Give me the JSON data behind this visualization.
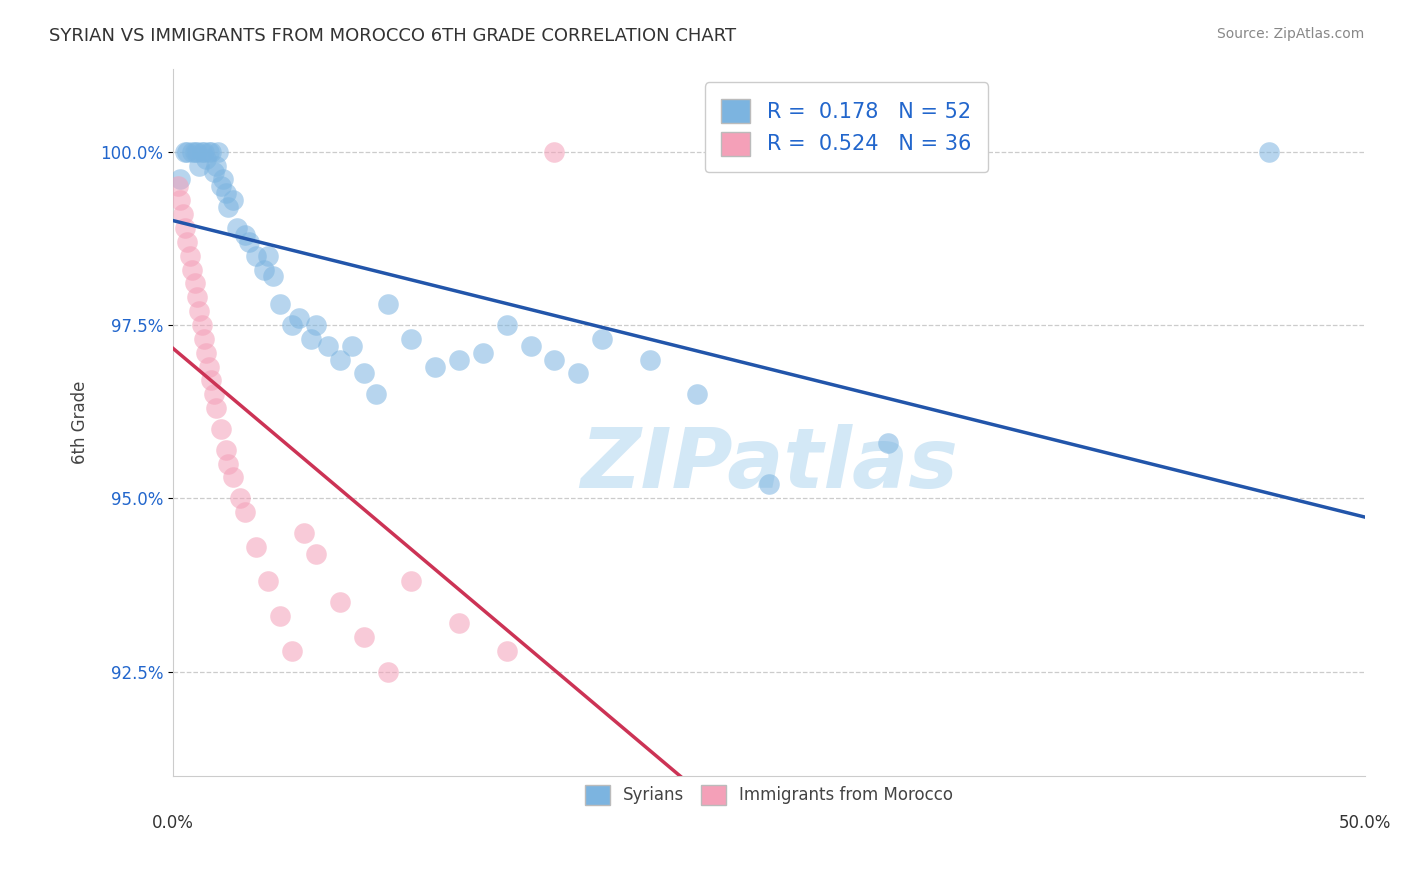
{
  "title": "SYRIAN VS IMMIGRANTS FROM MOROCCO 6TH GRADE CORRELATION CHART",
  "source": "Source: ZipAtlas.com",
  "ylabel": "6th Grade",
  "yticks": [
    92.5,
    95.0,
    97.5,
    100.0
  ],
  "ytick_labels": [
    "92.5%",
    "95.0%",
    "97.5%",
    "100.0%"
  ],
  "xlim": [
    0.0,
    50.0
  ],
  "ylim": [
    91.0,
    101.2
  ],
  "blue_color": "#7cb4e0",
  "pink_color": "#f4a0b8",
  "blue_line_color": "#2255aa",
  "pink_line_color": "#cc3355",
  "background_color": "#ffffff",
  "R_blue": 0.178,
  "N_blue": 52,
  "R_pink": 0.524,
  "N_pink": 36,
  "legend_R_N_color": "#2266cc",
  "watermark_color": "#cce4f5",
  "syrians_x": [
    0.3,
    0.5,
    0.6,
    0.8,
    0.9,
    1.0,
    1.1,
    1.2,
    1.3,
    1.4,
    1.5,
    1.6,
    1.7,
    1.8,
    1.9,
    2.0,
    2.1,
    2.2,
    2.3,
    2.5,
    2.7,
    3.0,
    3.2,
    3.5,
    3.8,
    4.0,
    4.2,
    4.5,
    5.0,
    5.3,
    5.8,
    6.0,
    6.5,
    7.0,
    7.5,
    8.0,
    8.5,
    9.0,
    10.0,
    11.0,
    12.0,
    13.0,
    14.0,
    15.0,
    16.0,
    17.0,
    18.0,
    20.0,
    22.0,
    25.0,
    30.0,
    46.0
  ],
  "syrians_y": [
    99.6,
    100.0,
    100.0,
    100.0,
    100.0,
    100.0,
    99.8,
    100.0,
    100.0,
    99.9,
    100.0,
    100.0,
    99.7,
    99.8,
    100.0,
    99.5,
    99.6,
    99.4,
    99.2,
    99.3,
    98.9,
    98.8,
    98.7,
    98.5,
    98.3,
    98.5,
    98.2,
    97.8,
    97.5,
    97.6,
    97.3,
    97.5,
    97.2,
    97.0,
    97.2,
    96.8,
    96.5,
    97.8,
    97.3,
    96.9,
    97.0,
    97.1,
    97.5,
    97.2,
    97.0,
    96.8,
    97.3,
    97.0,
    96.5,
    95.2,
    95.8,
    100.0
  ],
  "morocco_x": [
    0.2,
    0.3,
    0.4,
    0.5,
    0.6,
    0.7,
    0.8,
    0.9,
    1.0,
    1.1,
    1.2,
    1.3,
    1.4,
    1.5,
    1.6,
    1.7,
    1.8,
    2.0,
    2.2,
    2.5,
    2.8,
    3.0,
    3.5,
    4.0,
    4.5,
    5.0,
    5.5,
    6.0,
    7.0,
    8.0,
    9.0,
    10.0,
    12.0,
    14.0,
    16.0,
    2.3
  ],
  "morocco_y": [
    99.5,
    99.3,
    99.1,
    98.9,
    98.7,
    98.5,
    98.3,
    98.1,
    97.9,
    97.7,
    97.5,
    97.3,
    97.1,
    96.9,
    96.7,
    96.5,
    96.3,
    96.0,
    95.7,
    95.3,
    95.0,
    94.8,
    94.3,
    93.8,
    93.3,
    92.8,
    94.5,
    94.2,
    93.5,
    93.0,
    92.5,
    93.8,
    93.2,
    92.8,
    100.0,
    95.5
  ]
}
